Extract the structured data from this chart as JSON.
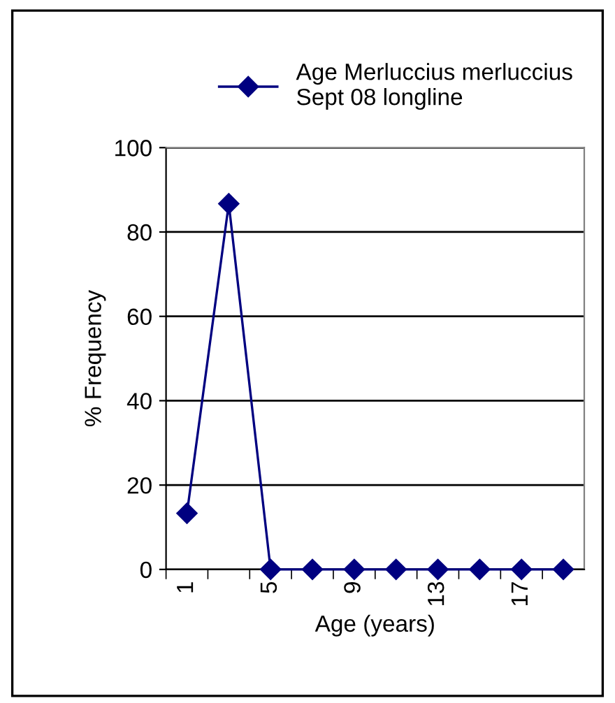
{
  "chart_data": {
    "type": "line",
    "xlabel": "Age (years)",
    "ylabel": "% Frequency",
    "categories": [
      "1",
      null,
      "5",
      null,
      "9",
      null,
      "13",
      null,
      "17",
      null
    ],
    "series": [
      {
        "name": "Age Merluccius merluccius\nSept 08 longline",
        "color": "#000080",
        "values": [
          13.3,
          86.7,
          0,
          0,
          0,
          0,
          0,
          0,
          0,
          0
        ]
      }
    ],
    "ylim": [
      0,
      100
    ],
    "yticks": [
      0,
      20,
      40,
      60,
      80,
      100
    ],
    "grid": "y",
    "legend": "top",
    "marker": "diamond",
    "line_style": "solid"
  }
}
